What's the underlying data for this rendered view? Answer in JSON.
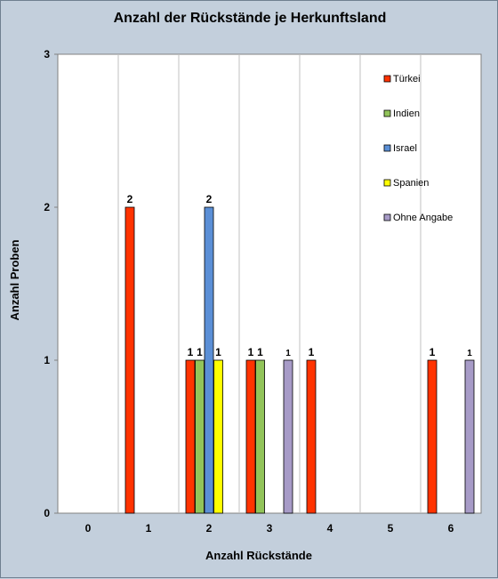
{
  "chart_data": {
    "type": "bar",
    "title": "Anzahl der Rückstände je Herkunftsland",
    "xlabel": "Anzahl Rückstände",
    "ylabel": "Anzahl Proben",
    "categories": [
      "0",
      "1",
      "2",
      "3",
      "4",
      "5",
      "6"
    ],
    "yticks": [
      "0",
      "1",
      "2",
      "3"
    ],
    "ylim": [
      0,
      3
    ],
    "grid": "vertical",
    "legend_position": "top-right",
    "series": [
      {
        "name": "Türkei",
        "color": "#ff3300",
        "values": [
          0,
          2,
          1,
          1,
          1,
          0,
          1
        ]
      },
      {
        "name": "Indien",
        "color": "#92c45a",
        "values": [
          0,
          0,
          1,
          1,
          0,
          0,
          0
        ]
      },
      {
        "name": "Israel",
        "color": "#5b8fd6",
        "values": [
          0,
          0,
          2,
          0,
          0,
          0,
          0
        ]
      },
      {
        "name": "Spanien",
        "color": "#ffff00",
        "values": [
          0,
          0,
          1,
          0,
          0,
          0,
          0
        ]
      },
      {
        "name": "Ohne Angabe",
        "color": "#a79bc7",
        "values": [
          0,
          0,
          0,
          1,
          0,
          0,
          1
        ]
      }
    ]
  }
}
